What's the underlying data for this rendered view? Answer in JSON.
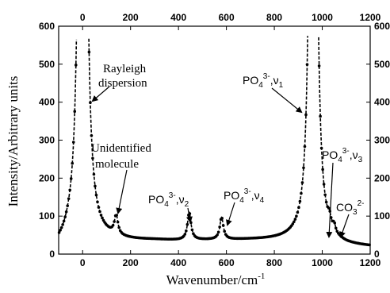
{
  "chart_data": {
    "type": "line",
    "xlabel_base": "Wavenumber/cm",
    "xlabel_sup": "-1",
    "ylabel": "Intensity/Arbitrary units",
    "xlim": [
      -100,
      1200
    ],
    "ylim": [
      0,
      600
    ],
    "x_ticks": [
      0,
      200,
      400,
      600,
      800,
      1000,
      1200
    ],
    "x_tick_labels": [
      "0",
      "200",
      "400",
      "600",
      "800",
      "1000",
      "1200"
    ],
    "y_ticks": [
      0,
      100,
      200,
      300,
      400,
      500,
      600
    ],
    "y_tick_labels": [
      "0",
      "100",
      "200",
      "300",
      "400",
      "500",
      "600"
    ],
    "baseline": [
      [
        -100,
        14
      ],
      [
        -80,
        20
      ],
      [
        -60,
        28
      ],
      [
        0,
        30
      ],
      [
        80,
        34
      ],
      [
        200,
        34
      ],
      [
        300,
        35
      ],
      [
        400,
        34
      ],
      [
        500,
        35
      ],
      [
        700,
        36
      ],
      [
        880,
        35
      ],
      [
        940,
        34
      ],
      [
        1100,
        20
      ],
      [
        1200,
        18
      ]
    ],
    "peaks": [
      {
        "center": 0,
        "amp": 5000,
        "width": 9
      },
      {
        "center": 140,
        "amp": 50,
        "width": 9
      },
      {
        "center": 445,
        "amp": 72,
        "width": 9
      },
      {
        "center": 580,
        "amp": 58,
        "width": 9
      },
      {
        "center": 962,
        "amp": 5000,
        "width": 8
      },
      {
        "center": 1030,
        "amp": 22,
        "width": 7
      },
      {
        "center": 1050,
        "amp": 18,
        "width": 6
      }
    ],
    "annotations": {
      "rayleigh": [
        "Rayleigh",
        "dispersion"
      ],
      "unidentified": [
        "Unidentified",
        "molecule"
      ],
      "po4_v1": {
        "base": "PO",
        "sub": "4",
        "sup": "3-",
        "tail": ",ν",
        "tail_sub": "1"
      },
      "po4_v2": {
        "base": "PO",
        "sub": "4",
        "sup": "3-",
        "tail": ",ν",
        "tail_sub": "2"
      },
      "po4_v4": {
        "base": "PO",
        "sub": "4",
        "sup": "3-",
        "tail": ",ν",
        "tail_sub": "4"
      },
      "po4_v3": {
        "base": "PO",
        "sub": "4",
        "sup": "3-",
        "tail": ",ν",
        "tail_sub": "3"
      },
      "co3": {
        "base": "CO",
        "sub": "3",
        "sup": "2-"
      }
    }
  }
}
